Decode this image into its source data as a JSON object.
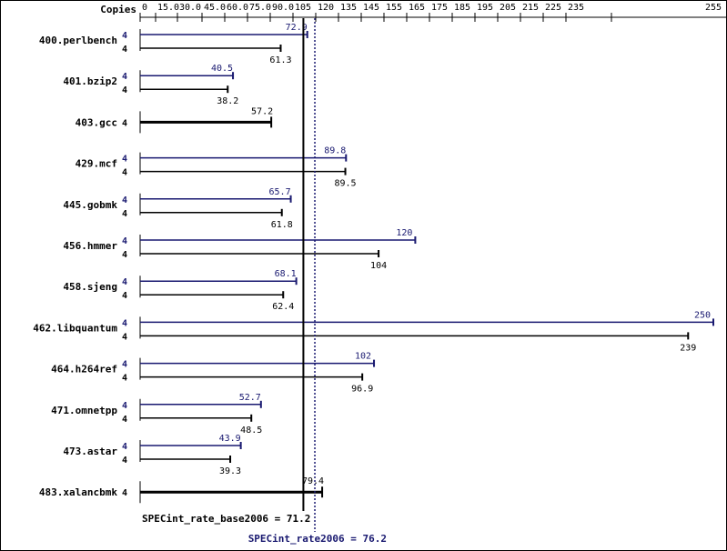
{
  "chart_data": {
    "type": "bar",
    "orientation": "horizontal",
    "copies_header": "Copies",
    "x_ticks": [
      "0",
      "15.0",
      "30.0",
      "45.0",
      "60.0",
      "75.0",
      "90.0",
      "105",
      "120",
      "135",
      "145",
      "155",
      "165",
      "175",
      "185",
      "195",
      "205",
      "215",
      "225",
      "235",
      "255"
    ],
    "xlim": [
      0,
      255
    ],
    "benchmarks": [
      {
        "name": "400.perlbench",
        "peak": {
          "copies": "4",
          "value": 72.9,
          "label": "72.9"
        },
        "base": {
          "copies": "4",
          "value": 61.3,
          "label": "61.3"
        }
      },
      {
        "name": "401.bzip2",
        "peak": {
          "copies": "4",
          "value": 40.5,
          "label": "40.5"
        },
        "base": {
          "copies": "4",
          "value": 38.2,
          "label": "38.2"
        }
      },
      {
        "name": "403.gcc",
        "single": {
          "copies": "4",
          "value": 57.2,
          "label": "57.2"
        }
      },
      {
        "name": "429.mcf",
        "peak": {
          "copies": "4",
          "value": 89.8,
          "label": "89.8"
        },
        "base": {
          "copies": "4",
          "value": 89.5,
          "label": "89.5"
        }
      },
      {
        "name": "445.gobmk",
        "peak": {
          "copies": "4",
          "value": 65.7,
          "label": "65.7"
        },
        "base": {
          "copies": "4",
          "value": 61.8,
          "label": "61.8"
        }
      },
      {
        "name": "456.hmmer",
        "peak": {
          "copies": "4",
          "value": 120,
          "label": "120"
        },
        "base": {
          "copies": "4",
          "value": 104,
          "label": "104"
        }
      },
      {
        "name": "458.sjeng",
        "peak": {
          "copies": "4",
          "value": 68.1,
          "label": "68.1"
        },
        "base": {
          "copies": "4",
          "value": 62.4,
          "label": "62.4"
        }
      },
      {
        "name": "462.libquantum",
        "peak": {
          "copies": "4",
          "value": 250,
          "label": "250"
        },
        "base": {
          "copies": "4",
          "value": 239,
          "label": "239"
        }
      },
      {
        "name": "464.h264ref",
        "peak": {
          "copies": "4",
          "value": 102,
          "label": "102"
        },
        "base": {
          "copies": "4",
          "value": 96.9,
          "label": "96.9"
        }
      },
      {
        "name": "471.omnetpp",
        "peak": {
          "copies": "4",
          "value": 52.7,
          "label": "52.7"
        },
        "base": {
          "copies": "4",
          "value": 48.5,
          "label": "48.5"
        }
      },
      {
        "name": "473.astar",
        "peak": {
          "copies": "4",
          "value": 43.9,
          "label": "43.9"
        },
        "base": {
          "copies": "4",
          "value": 39.3,
          "label": "39.3"
        }
      },
      {
        "name": "483.xalancbmk",
        "single": {
          "copies": "4",
          "value": 79.4,
          "label": "79.4"
        }
      }
    ],
    "base_summary": {
      "label": "SPECint_rate_base2006 = 71.2",
      "value": 71.2
    },
    "peak_summary": {
      "label": "SPECint_rate2006 = 76.2",
      "value": 76.2
    },
    "colors": {
      "base": "#000000",
      "peak": "#191970"
    }
  }
}
